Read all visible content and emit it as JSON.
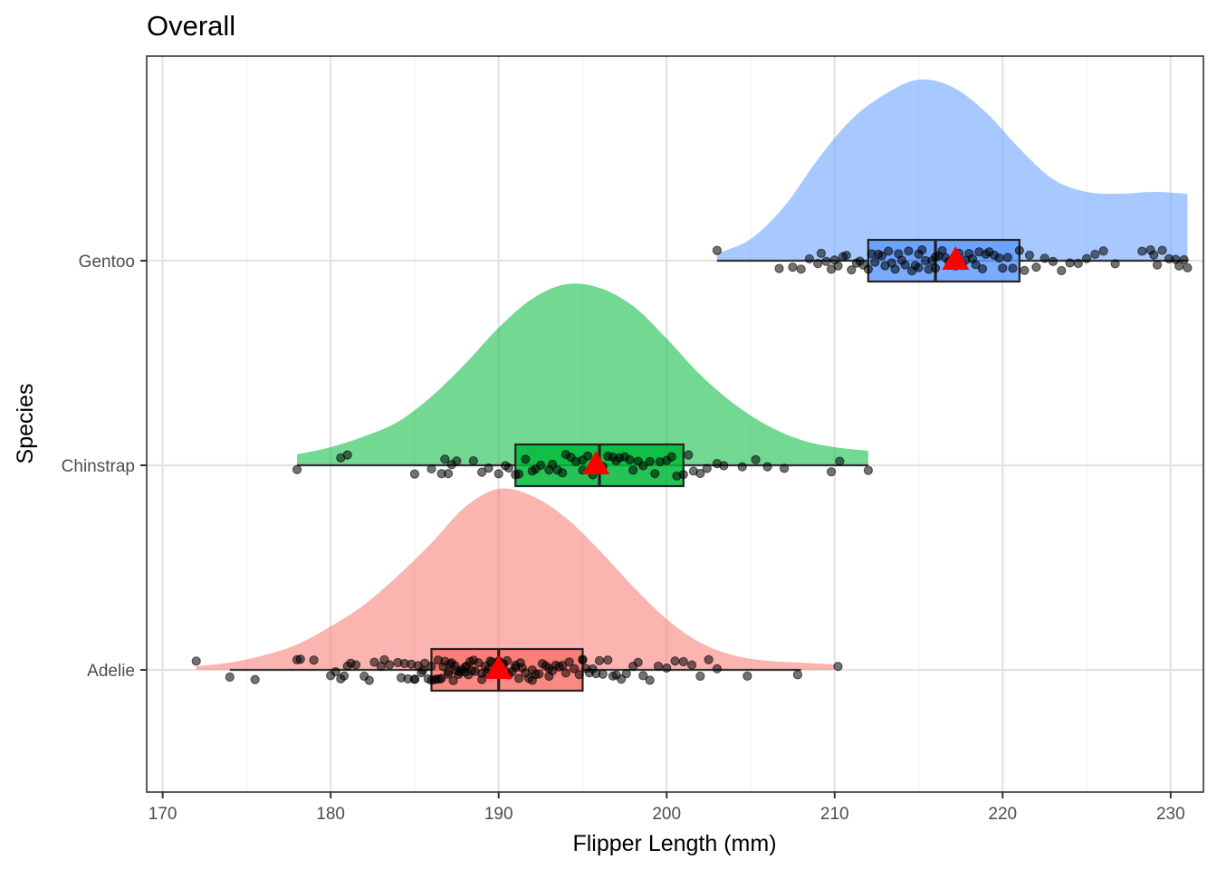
{
  "chart_data": {
    "type": "raincloud",
    "title": "Overall",
    "xlabel": "Flipper Length (mm)",
    "ylabel": "Species",
    "xlim": [
      169.05,
      231.95
    ],
    "xticks": [
      170,
      180,
      190,
      200,
      210,
      220,
      230
    ],
    "categories": [
      "Adelie",
      "Chinstrap",
      "Gentoo"
    ],
    "grid": true,
    "series": [
      {
        "name": "Adelie",
        "fill": "#f8766d",
        "whisker": [
          174,
          208
        ],
        "box": {
          "q1": 186,
          "median": 190,
          "q3": 195
        },
        "mean": 190,
        "range": [
          172,
          210
        ],
        "density_peak": 190,
        "density_sd": 5.8,
        "points": [
          172,
          174,
          175.5,
          178,
          178.2,
          179,
          180,
          180.3,
          180.6,
          180.8,
          181,
          181.2,
          181.5,
          182,
          182.3,
          182.6,
          183,
          183.2,
          183.5,
          184,
          184.2,
          184.4,
          184.6,
          184.8,
          185,
          185,
          185.2,
          185.4,
          185.5,
          185.6,
          185.8,
          186,
          186,
          186.2,
          186.3,
          186.4,
          186.5,
          186.6,
          186.7,
          186.8,
          187,
          187,
          187.1,
          187.2,
          187.3,
          187.4,
          187.5,
          187.6,
          187.7,
          187.8,
          188,
          188,
          188.1,
          188.2,
          188.3,
          188.4,
          188.5,
          188.6,
          188.8,
          189,
          189,
          189.2,
          189.3,
          189.4,
          189.5,
          189.6,
          189.8,
          190,
          190,
          190.1,
          190.2,
          190.3,
          190.4,
          190.5,
          190.6,
          190.8,
          191,
          191,
          191.2,
          191.3,
          191.4,
          191.6,
          191.8,
          192,
          192,
          192.2,
          192.4,
          192.6,
          192.8,
          193,
          193,
          193.2,
          193.4,
          193.6,
          193.8,
          194,
          194.2,
          194.5,
          194.8,
          195,
          195,
          195.2,
          195.4,
          195.6,
          195.8,
          196,
          196.2,
          196.5,
          196.8,
          197,
          197.3,
          197.6,
          198,
          198.3,
          198.6,
          199,
          199.5,
          200,
          200.5,
          201,
          201.5,
          202,
          202.5,
          203,
          204.8,
          207.8,
          210.2
        ]
      },
      {
        "name": "Chinstrap",
        "fill": "#00ba38",
        "whisker": [
          178,
          212
        ],
        "box": {
          "q1": 191,
          "median": 196,
          "q3": 201
        },
        "mean": 195.8,
        "range": [
          178,
          212
        ],
        "density_peak": 195.8,
        "density_sd": 7.2,
        "points": [
          178,
          180.6,
          181,
          185,
          186,
          186.6,
          186.8,
          187,
          187.2,
          187.5,
          188.5,
          189,
          189.4,
          190,
          190.4,
          190.6,
          191,
          191.2,
          191.6,
          192,
          192.2,
          192.5,
          193,
          193.2,
          193.5,
          193.8,
          194,
          194.3,
          194.6,
          195,
          195,
          195.3,
          195.6,
          196,
          196.2,
          196.5,
          196.8,
          197,
          197.2,
          197.5,
          197.8,
          198,
          198.3,
          198.6,
          199,
          199.3,
          199.6,
          200,
          200.3,
          200.6,
          201,
          201.3,
          201.6,
          202,
          202.4,
          203,
          203.4,
          204.5,
          205.3,
          206,
          207,
          209.8,
          210.3,
          212
        ]
      },
      {
        "name": "Gentoo",
        "fill": "#619cff",
        "whisker": [
          203,
          231
        ],
        "box": {
          "q1": 212,
          "median": 216,
          "q3": 221
        },
        "mean": 217.2,
        "range": [
          203,
          231
        ],
        "density_peak": 215.2,
        "density_sd": 4.9,
        "points": [
          203,
          206.7,
          207.5,
          208,
          208.5,
          209,
          209.2,
          209.5,
          209.8,
          210,
          210.2,
          210.5,
          210.7,
          211,
          211.3,
          211.5,
          211.7,
          212,
          212.2,
          212.4,
          212.6,
          212.8,
          213,
          213.2,
          213.4,
          213.6,
          213.8,
          214,
          214.2,
          214.4,
          214.6,
          214.8,
          215,
          215,
          215.2,
          215.4,
          215.6,
          215.8,
          216,
          216,
          216.2,
          216.4,
          216.6,
          216.8,
          217,
          217.2,
          217.4,
          217.6,
          217.8,
          218,
          218.2,
          218.4,
          218.6,
          218.8,
          219,
          219.2,
          219.5,
          219.8,
          220,
          220.3,
          220.6,
          221,
          221.3,
          221.6,
          222,
          222.5,
          223,
          223.5,
          224,
          224.5,
          225,
          225.5,
          226,
          226.7,
          228.3,
          228.8,
          229,
          229.2,
          229.5,
          229.9,
          230.3,
          230.5,
          230.8,
          231
        ]
      }
    ],
    "density_shape": {
      "Adelie": {
        "x": [
          172,
          174,
          176,
          178,
          180,
          182,
          184,
          186,
          188,
          190,
          192,
          194,
          196,
          198,
          200,
          202,
          204,
          206,
          208,
          210
        ],
        "d": [
          0.02,
          0.04,
          0.08,
          0.14,
          0.24,
          0.36,
          0.52,
          0.7,
          0.9,
          1.0,
          0.96,
          0.84,
          0.66,
          0.46,
          0.28,
          0.15,
          0.08,
          0.05,
          0.04,
          0.03
        ]
      },
      "Chinstrap": {
        "x": [
          178,
          180,
          182,
          184,
          186,
          188,
          190,
          192,
          194,
          196,
          198,
          200,
          202,
          204,
          206,
          208,
          210,
          212
        ],
        "d": [
          0.06,
          0.1,
          0.16,
          0.24,
          0.38,
          0.56,
          0.76,
          0.92,
          1.0,
          0.98,
          0.88,
          0.7,
          0.5,
          0.34,
          0.22,
          0.14,
          0.1,
          0.08
        ]
      },
      "Gentoo": {
        "x": [
          203,
          205,
          207,
          209,
          211,
          213,
          215,
          217,
          219,
          221,
          223,
          225,
          227,
          229,
          231
        ],
        "d": [
          0.04,
          0.12,
          0.3,
          0.56,
          0.78,
          0.92,
          1.0,
          0.96,
          0.82,
          0.62,
          0.45,
          0.38,
          0.37,
          0.38,
          0.37
        ]
      }
    }
  }
}
